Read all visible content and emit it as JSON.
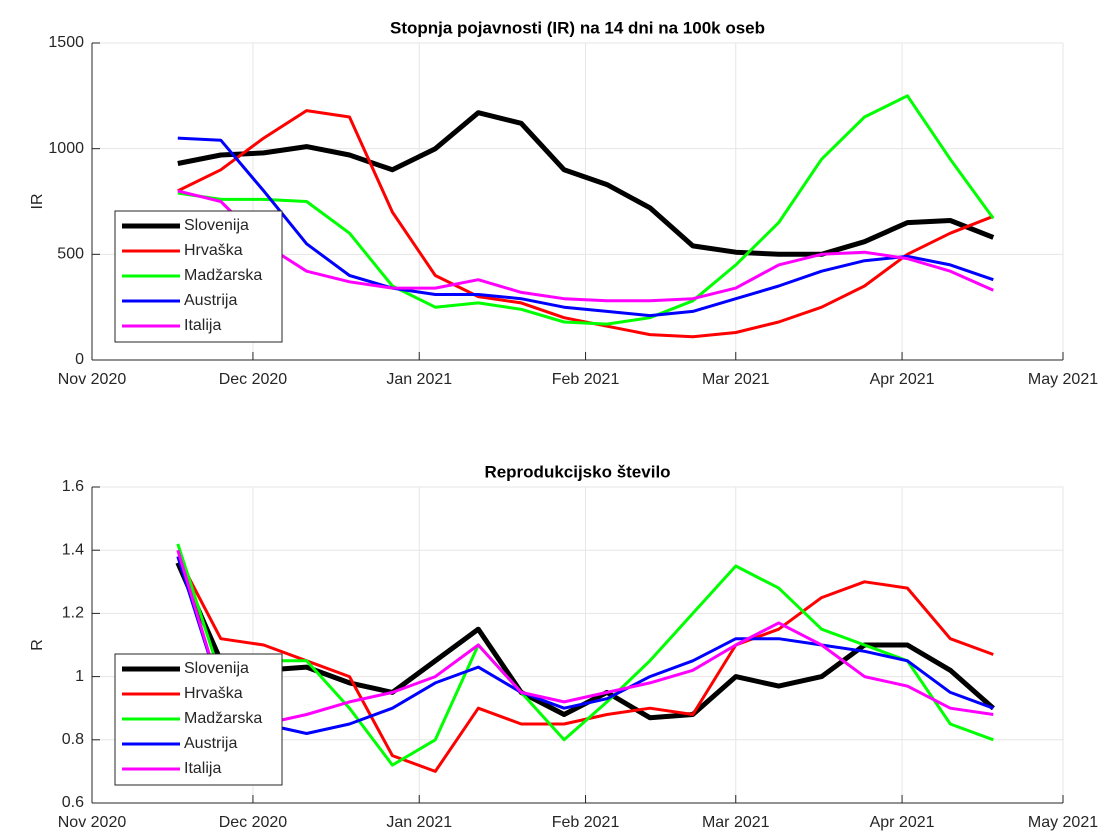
{
  "chart_data": [
    {
      "type": "line",
      "title": "Stopnja pojavnosti (IR) na 14 dni na 100k oseb",
      "y_label": "IR",
      "x": [
        16,
        24,
        32,
        40,
        48,
        56,
        64,
        72,
        80,
        88,
        96,
        104,
        112,
        120,
        128,
        136,
        144,
        152,
        160,
        168
      ],
      "xlim": [
        0,
        181
      ],
      "xticks": [
        {
          "value": 0,
          "label": "Nov 2020"
        },
        {
          "value": 30,
          "label": "Dec 2020"
        },
        {
          "value": 61,
          "label": "Jan 2021"
        },
        {
          "value": 92,
          "label": "Feb 2021"
        },
        {
          "value": 120,
          "label": "Mar 2021"
        },
        {
          "value": 151,
          "label": "Apr 2021"
        },
        {
          "value": 181,
          "label": "May 2021"
        }
      ],
      "ylim": [
        0,
        1500
      ],
      "yticks": [
        0,
        500,
        1000,
        1500
      ],
      "grid": true,
      "legend": "lower-left",
      "series": [
        {
          "name": "Slovenija",
          "color": "#000000",
          "values": [
            930,
            970,
            980,
            1010,
            970,
            900,
            1000,
            1170,
            1120,
            900,
            830,
            720,
            540,
            510,
            500,
            500,
            560,
            650,
            660,
            580
          ]
        },
        {
          "name": "Hrvaška",
          "color": "#ff0000",
          "values": [
            800,
            900,
            1050,
            1180,
            1150,
            700,
            400,
            300,
            270,
            200,
            160,
            120,
            110,
            130,
            180,
            250,
            350,
            500,
            600,
            680
          ]
        },
        {
          "name": "Madžarska",
          "color": "#00ff00",
          "values": [
            790,
            760,
            760,
            750,
            600,
            350,
            250,
            270,
            240,
            180,
            170,
            200,
            280,
            450,
            650,
            950,
            1150,
            1250,
            950,
            670
          ]
        },
        {
          "name": "Austrija",
          "color": "#0000ff",
          "values": [
            1050,
            1040,
            800,
            550,
            400,
            340,
            310,
            310,
            290,
            250,
            230,
            210,
            230,
            290,
            350,
            420,
            470,
            490,
            450,
            380
          ]
        },
        {
          "name": "Italija",
          "color": "#ff00ff",
          "values": [
            800,
            750,
            550,
            420,
            370,
            340,
            340,
            380,
            320,
            290,
            280,
            280,
            290,
            340,
            450,
            500,
            510,
            480,
            420,
            330
          ]
        }
      ]
    },
    {
      "type": "line",
      "title": "Reprodukcijsko število",
      "y_label": "R",
      "x": [
        16,
        24,
        32,
        40,
        48,
        56,
        64,
        72,
        80,
        88,
        96,
        104,
        112,
        120,
        128,
        136,
        144,
        152,
        160,
        168
      ],
      "xlim": [
        0,
        181
      ],
      "xticks": [
        {
          "value": 0,
          "label": "Nov 2020"
        },
        {
          "value": 30,
          "label": "Dec 2020"
        },
        {
          "value": 61,
          "label": "Jan 2021"
        },
        {
          "value": 92,
          "label": "Feb 2021"
        },
        {
          "value": 120,
          "label": "Mar 2021"
        },
        {
          "value": 151,
          "label": "Apr 2021"
        },
        {
          "value": 181,
          "label": "May 2021"
        }
      ],
      "ylim": [
        0.6,
        1.6
      ],
      "yticks": [
        0.6,
        0.8,
        1,
        1.2,
        1.4,
        1.6
      ],
      "grid": true,
      "legend": "lower-left",
      "series": [
        {
          "name": "Slovenija",
          "color": "#000000",
          "values": [
            1.36,
            1.05,
            1.02,
            1.03,
            0.98,
            0.95,
            1.05,
            1.15,
            0.95,
            0.88,
            0.95,
            0.87,
            0.88,
            1.0,
            0.97,
            1.0,
            1.1,
            1.1,
            1.02,
            0.9
          ]
        },
        {
          "name": "Hrvaška",
          "color": "#ff0000",
          "values": [
            1.38,
            1.12,
            1.1,
            1.05,
            1.0,
            0.75,
            0.7,
            0.9,
            0.85,
            0.85,
            0.88,
            0.9,
            0.88,
            1.1,
            1.15,
            1.25,
            1.3,
            1.28,
            1.12,
            1.07
          ]
        },
        {
          "name": "Madžarska",
          "color": "#00ff00",
          "values": [
            1.42,
            1.0,
            1.05,
            1.05,
            0.9,
            0.72,
            0.8,
            1.1,
            0.95,
            0.8,
            0.92,
            1.05,
            1.2,
            1.35,
            1.28,
            1.15,
            1.1,
            1.05,
            0.85,
            0.8
          ]
        },
        {
          "name": "Austrija",
          "color": "#0000ff",
          "values": [
            1.38,
            0.95,
            0.85,
            0.82,
            0.85,
            0.9,
            0.98,
            1.03,
            0.95,
            0.9,
            0.93,
            1.0,
            1.05,
            1.12,
            1.12,
            1.1,
            1.08,
            1.05,
            0.95,
            0.9
          ]
        },
        {
          "name": "Italija",
          "color": "#ff00ff",
          "values": [
            1.4,
            0.95,
            0.85,
            0.88,
            0.92,
            0.95,
            1.0,
            1.1,
            0.95,
            0.92,
            0.95,
            0.98,
            1.02,
            1.1,
            1.17,
            1.1,
            1.0,
            0.97,
            0.9,
            0.88
          ]
        }
      ]
    }
  ]
}
